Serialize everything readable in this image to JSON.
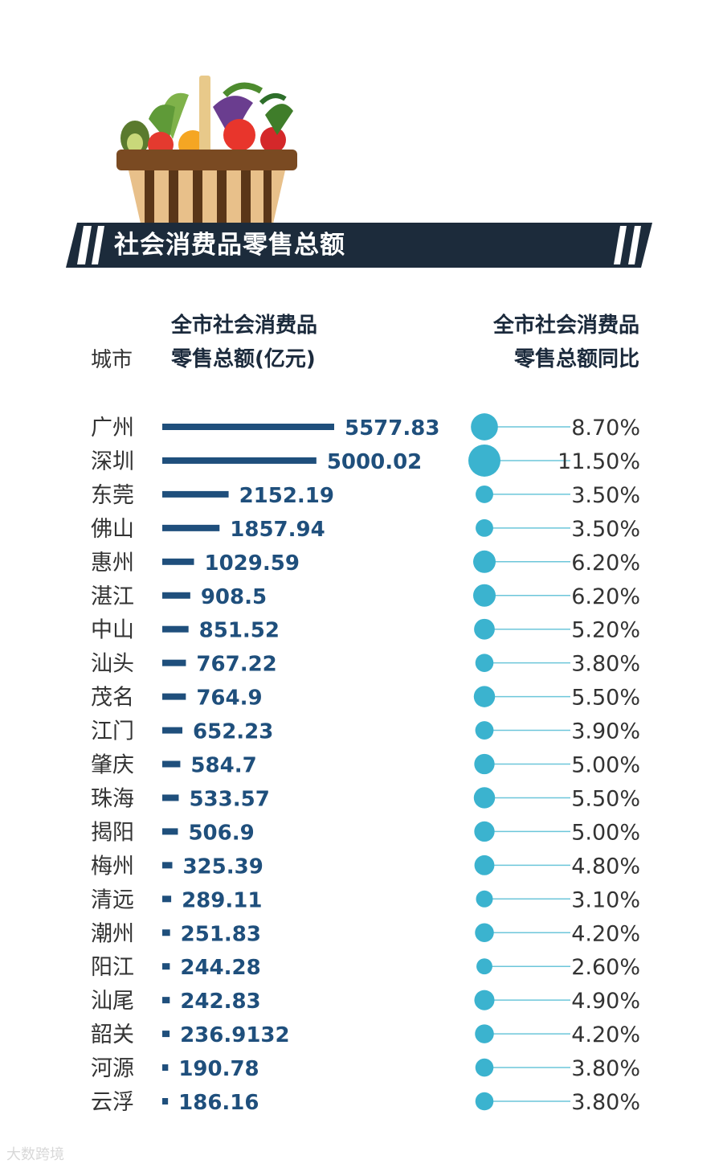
{
  "chart_data": {
    "type": "bar",
    "title": "社会消费品零售总额",
    "header_city": "城市",
    "header_total_line1": "全市社会消费品",
    "header_total_line2": "零售总额(亿元)",
    "header_yoy_line1": "全市社会消费品",
    "header_yoy_line2": "零售总额同比",
    "categories": [
      "广州",
      "深圳",
      "东莞",
      "佛山",
      "惠州",
      "湛江",
      "中山",
      "汕头",
      "茂名",
      "江门",
      "肇庆",
      "珠海",
      "揭阳",
      "梅州",
      "清远",
      "潮州",
      "阳江",
      "汕尾",
      "韶关",
      "河源",
      "云浮"
    ],
    "series": [
      {
        "name": "全市社会消费品零售总额(亿元)",
        "values": [
          5577.83,
          5000.02,
          2152.19,
          1857.94,
          1029.59,
          908.5,
          851.52,
          767.22,
          764.9,
          652.23,
          584.7,
          533.57,
          506.9,
          325.39,
          289.11,
          251.83,
          244.28,
          242.83,
          236.9132,
          190.78,
          186.16
        ],
        "labels": [
          "5577.83",
          "5000.02",
          "2152.19",
          "1857.94",
          "1029.59",
          "908.5",
          "851.52",
          "767.22",
          "764.9",
          "652.23",
          "584.7",
          "533.57",
          "506.9",
          "325.39",
          "289.11",
          "251.83",
          "244.28",
          "242.83",
          "236.9132",
          "190.78",
          "186.16"
        ]
      },
      {
        "name": "全市社会消费品零售总额同比",
        "values": [
          8.7,
          11.5,
          3.5,
          3.5,
          6.2,
          6.2,
          5.2,
          3.8,
          5.5,
          3.9,
          5.0,
          5.5,
          5.0,
          4.8,
          3.1,
          4.2,
          2.6,
          4.9,
          4.2,
          3.8,
          3.8
        ],
        "labels": [
          "8.70%",
          "11.50%",
          "3.50%",
          "3.50%",
          "6.20%",
          "6.20%",
          "5.20%",
          "3.80%",
          "5.50%",
          "3.90%",
          "5.00%",
          "5.50%",
          "5.00%",
          "4.80%",
          "3.10%",
          "4.20%",
          "2.60%",
          "4.90%",
          "4.20%",
          "3.80%",
          "3.80%"
        ]
      }
    ],
    "colors": {
      "bar": "#1f4f7c",
      "value_text": "#1f4f7c",
      "dot": "#3bb3cf",
      "line": "#6cc6da",
      "city_text": "#333333",
      "banner": "#1c2b3b"
    }
  },
  "watermark": "大数跨境"
}
